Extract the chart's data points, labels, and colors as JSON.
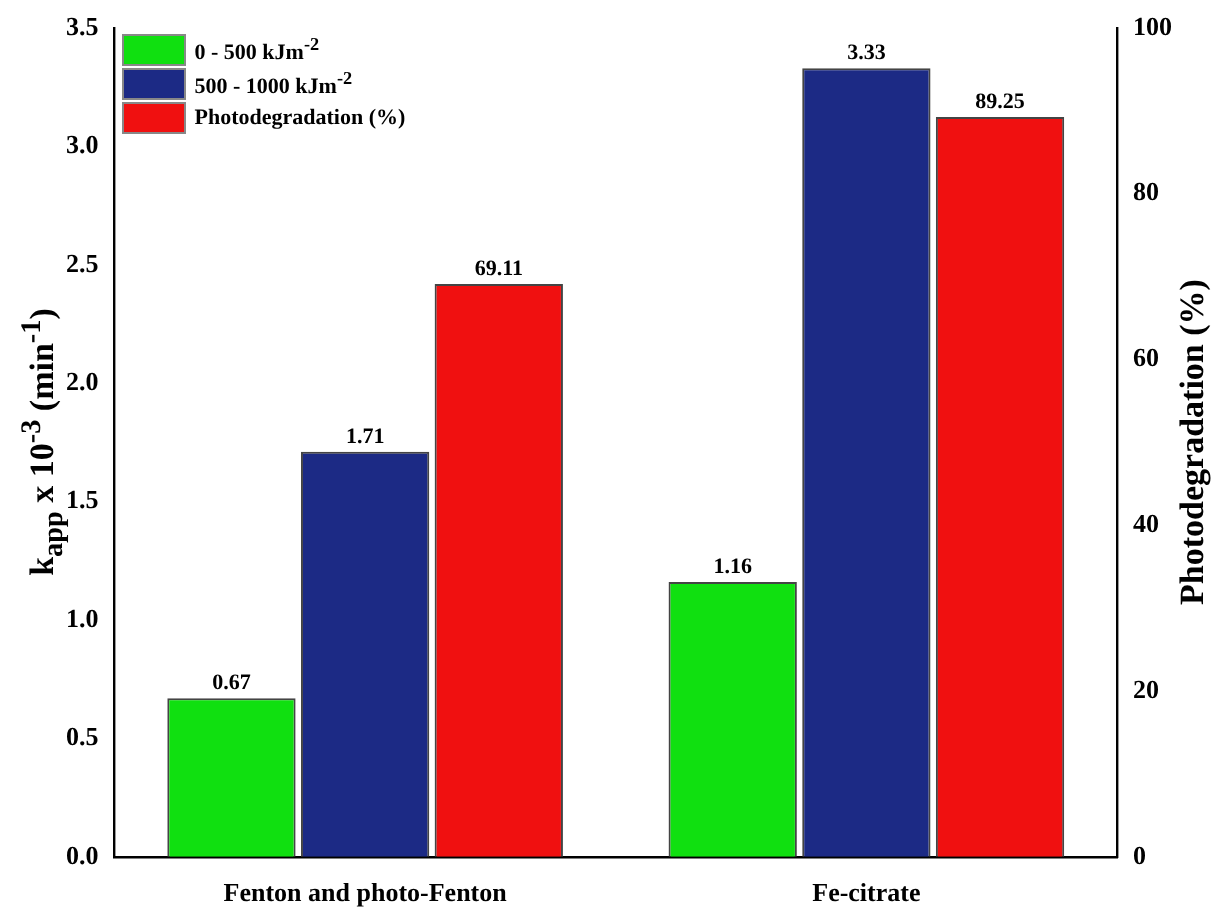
{
  "chart_data": {
    "type": "bar",
    "categories": [
      "Fenton and photo-Fenton",
      "Fe-citrate"
    ],
    "series": [
      {
        "name": "0 - 500 kJm$^{-2}$",
        "color": "#10e010",
        "values": [
          0.67,
          1.16
        ]
      },
      {
        "name": "500 - 1000 kJm$^{-2}$",
        "color": "#1c2a85",
        "values": [
          1.71,
          3.33
        ]
      },
      {
        "name": "Photodegradation (%)",
        "color": "#f01010",
        "values": [
          69.11,
          89.25
        ],
        "axis": "y2"
      }
    ],
    "ylabel": "k$_{app}$ x 10$^{-3}$ (min$^{-1}$)",
    "y2label": "Photodegradation (%)",
    "ylim": [
      0,
      3.5
    ],
    "yticks": [
      {
        "value": 0,
        "label": "0.0"
      },
      {
        "value": 0.5,
        "label": "0.5"
      },
      {
        "value": 1,
        "label": "1.0"
      },
      {
        "value": 1.5,
        "label": "1.5"
      },
      {
        "value": 2,
        "label": "2.0"
      },
      {
        "value": 2.5,
        "label": "2.5"
      },
      {
        "value": 3,
        "label": "3.0"
      },
      {
        "value": 3.5,
        "label": "3.5"
      }
    ],
    "y2lim": [
      0,
      100
    ],
    "y2ticks": [
      0,
      20,
      40,
      60,
      80,
      100
    ],
    "data_labels": true,
    "legend": "top left",
    "grid": false
  }
}
